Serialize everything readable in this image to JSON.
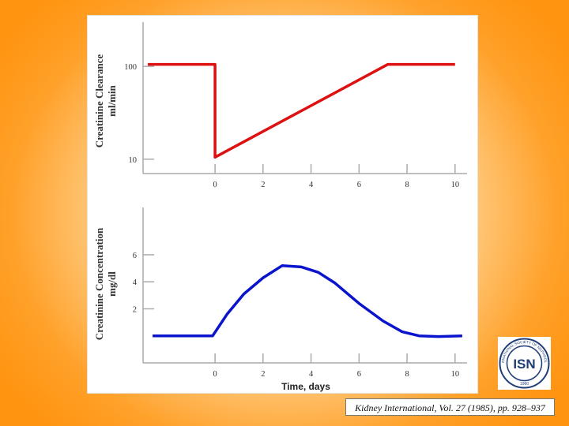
{
  "chart_data": [
    {
      "type": "line",
      "ylabel_line1": "Creatinine Clearance",
      "ylabel_line2": "ml/min",
      "yscale": "log",
      "xlim": [
        -3,
        10.5
      ],
      "ylim": [
        7,
        300
      ],
      "x_ticks": [
        0,
        2,
        4,
        6,
        8,
        10
      ],
      "y_ticks": [
        10,
        100
      ],
      "color": "#dd1111",
      "series": [
        {
          "x": [
            -2.8,
            0,
            0,
            7.2,
            10
          ],
          "y": [
            105,
            105,
            10.5,
            105,
            105
          ]
        }
      ]
    },
    {
      "type": "line",
      "ylabel_line1": "Creatinine Concentration",
      "ylabel_line2": "mg/dl",
      "yscale": "linear",
      "xlim": [
        -3,
        10.5
      ],
      "ylim": [
        -2,
        9.5
      ],
      "x_ticks": [
        0,
        2,
        4,
        6,
        8,
        10
      ],
      "y_ticks": [
        2,
        4,
        6
      ],
      "xlabel": "Time, days",
      "color": "#0a14cc",
      "series": [
        {
          "x": [
            -2.6,
            -0.1,
            0.5,
            1.2,
            2.0,
            2.8,
            3.6,
            4.3,
            5.0,
            6.0,
            7.0,
            7.8,
            8.5,
            9.3,
            10.3
          ],
          "y": [
            0.0,
            0.0,
            1.6,
            3.1,
            4.3,
            5.2,
            5.1,
            4.7,
            3.9,
            2.4,
            1.1,
            0.3,
            0.0,
            -0.05,
            0.0
          ]
        }
      ]
    }
  ],
  "citation": "Kidney International, Vol. 27 (1985), pp. 928–937",
  "logo": {
    "text": "ISN",
    "ring_text": "INTERNATIONAL SOCIETY OF NEPHROLOGY",
    "year": "1960"
  }
}
